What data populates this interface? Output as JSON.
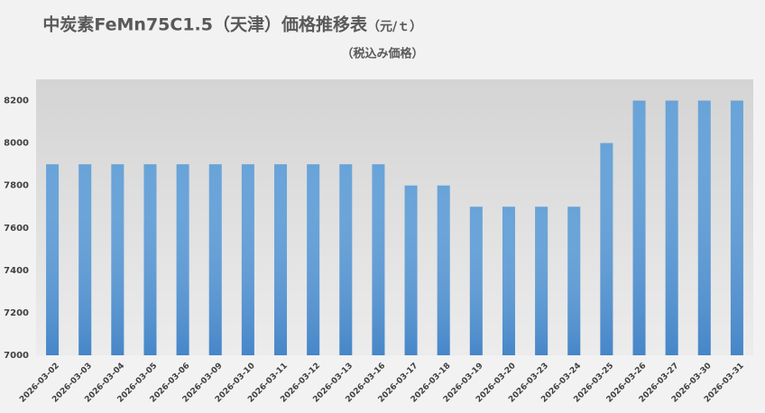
{
  "chart_data": {
    "type": "bar",
    "title": "中炭素FeMn75C1.5（天津）価格推移表",
    "unit": "（元/ｔ）",
    "subtitle": "（税込み価格）",
    "categories": [
      "2026-03-02",
      "2026-03-03",
      "2026-03-04",
      "2026-03-05",
      "2026-03-06",
      "2026-03-09",
      "2026-03-10",
      "2026-03-11",
      "2026-03-12",
      "2026-03-13",
      "2026-03-16",
      "2026-03-17",
      "2026-03-18",
      "2026-03-19",
      "2026-03-20",
      "2026-03-23",
      "2026-03-24",
      "2026-03-25",
      "2026-03-26",
      "2026-03-27",
      "2026-03-30",
      "2026-03-31"
    ],
    "values": [
      7900,
      7900,
      7900,
      7900,
      7900,
      7900,
      7900,
      7900,
      7900,
      7900,
      7900,
      7800,
      7800,
      7700,
      7700,
      7700,
      7700,
      8000,
      8200,
      8200,
      8200,
      8200
    ],
    "color": "#5b9bd5",
    "ylim": [
      7000,
      8300
    ],
    "yticks": [
      7000,
      7200,
      7400,
      7600,
      7800,
      8000,
      8200
    ],
    "grid": false
  }
}
